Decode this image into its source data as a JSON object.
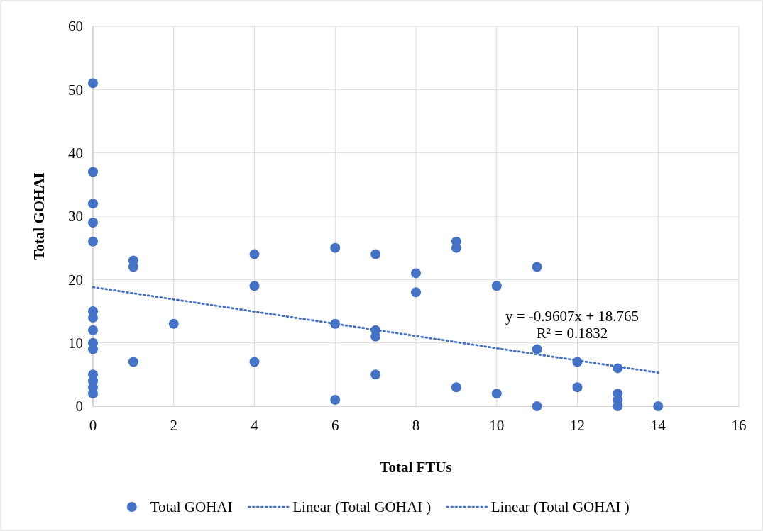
{
  "chart_data": {
    "type": "scatter",
    "xlabel": "Total FTUs",
    "ylabel": "Total GOHAI",
    "xlim": [
      0,
      16
    ],
    "xticks": [
      0,
      2,
      4,
      6,
      8,
      10,
      12,
      14,
      16
    ],
    "ylim": [
      0,
      60
    ],
    "yticks": [
      0,
      10,
      20,
      30,
      40,
      50,
      60
    ],
    "grid": true,
    "legend": "bottom",
    "annotations": [
      "y = -0.9607x + 18.765",
      "R² = 0.1832"
    ],
    "series": [
      {
        "name": "Total GOHAI",
        "marker": "circle",
        "color": "#4472c4",
        "x": [
          0,
          0,
          0,
          0,
          0,
          0,
          0,
          0,
          0,
          0,
          0,
          0,
          0,
          0,
          1,
          1,
          1,
          2,
          4,
          4,
          4,
          6,
          6,
          6,
          7,
          7,
          7,
          7,
          8,
          8,
          9,
          9,
          9,
          10,
          10,
          11,
          11,
          11,
          12,
          12,
          13,
          13,
          13,
          13,
          14
        ],
        "values": [
          51,
          37,
          32,
          29,
          26,
          15,
          14,
          12,
          10,
          9,
          5,
          4,
          3,
          2,
          23,
          22,
          7,
          13,
          24,
          19,
          7,
          25,
          13,
          1,
          24,
          12,
          11,
          5,
          21,
          18,
          26,
          25,
          3,
          19,
          2,
          22,
          9,
          0,
          7,
          3,
          6,
          2,
          1,
          0,
          0
        ]
      },
      {
        "name": "Linear (Total GOHAI )",
        "type": "line",
        "line_style": "dotted",
        "color": "#4472c4",
        "x": [
          0,
          14
        ],
        "values": [
          18.8,
          5.3
        ]
      },
      {
        "name": "Linear (Total GOHAI )",
        "type": "line",
        "line_style": "dotted",
        "color": "#4472c4",
        "x": [
          0,
          14
        ],
        "values": [
          18.8,
          5.3
        ]
      }
    ]
  }
}
